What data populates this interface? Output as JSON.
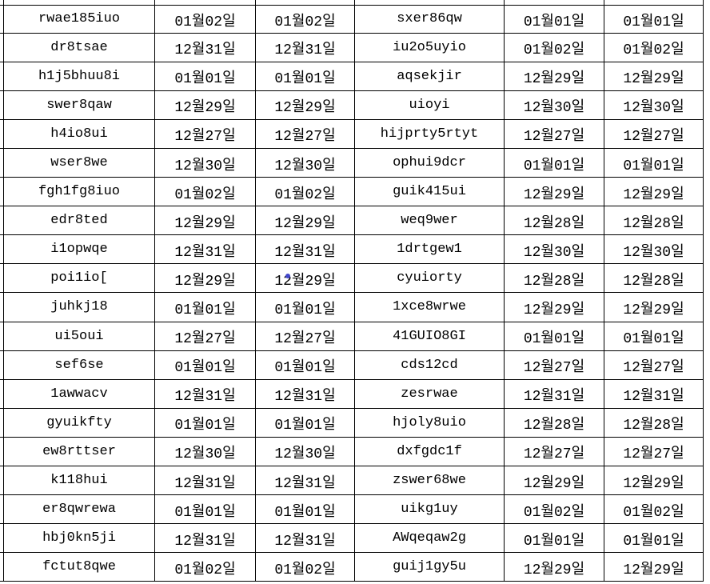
{
  "grid": {
    "description": "spreadsheet cell grid, cropped on all sides, no headers visible",
    "columns": [
      "name_a",
      "date_a1",
      "date_a2",
      "name_b",
      "date_b1",
      "date_b2"
    ],
    "rows": [
      [
        "rwae185iuo",
        "01월02일",
        "01월02일",
        "sxer86qw",
        "01월01일",
        "01월01일"
      ],
      [
        "dr8tsae",
        "12월31일",
        "12월31일",
        "iu2o5uyio",
        "01월02일",
        "01월02일"
      ],
      [
        "h1j5bhuu8i",
        "01월01일",
        "01월01일",
        "aqsekjir",
        "12월29일",
        "12월29일"
      ],
      [
        "swer8qaw",
        "12월29일",
        "12월29일",
        "uioyi",
        "12월30일",
        "12월30일"
      ],
      [
        "h4io8ui",
        "12월27일",
        "12월27일",
        "hijprty5rtyt",
        "12월27일",
        "12월27일"
      ],
      [
        "wser8we",
        "12월30일",
        "12월30일",
        "ophui9dcr",
        "01월01일",
        "01월01일"
      ],
      [
        "fgh1fg8iuo",
        "01월02일",
        "01월02일",
        "guik415ui",
        "12월29일",
        "12월29일"
      ],
      [
        "edr8ted",
        "12월29일",
        "12월29일",
        "weq9wer",
        "12월28일",
        "12월28일"
      ],
      [
        "i1opwqe",
        "12월31일",
        "12월31일",
        "1drtgew1",
        "12월30일",
        "12월30일"
      ],
      [
        "poi1io[",
        "12월29일",
        "12월29일",
        "cyuiorty",
        "12월28일",
        "12월28일"
      ],
      [
        "juhkj18",
        "01월01일",
        "01월01일",
        "1xce8wrwe",
        "12월29일",
        "12월29일"
      ],
      [
        "ui5oui",
        "12월27일",
        "12월27일",
        "41GUIO8GI",
        "01월01일",
        "01월01일"
      ],
      [
        "sef6se",
        "01월01일",
        "01월01일",
        "cds12cd",
        "12월27일",
        "12월27일"
      ],
      [
        "1awwacv",
        "12월31일",
        "12월31일",
        "zesrwae",
        "12월31일",
        "12월31일"
      ],
      [
        "gyuikfty",
        "01월01일",
        "01월01일",
        "hjoly8uio",
        "12월28일",
        "12월28일"
      ],
      [
        "ew8rttser",
        "12월30일",
        "12월30일",
        "dxfgdc1f",
        "12월27일",
        "12월27일"
      ],
      [
        "k118hui",
        "12월31일",
        "12월31일",
        "zswer68we",
        "12월29일",
        "12월29일"
      ],
      [
        "er8qwrewa",
        "01월01일",
        "01월01일",
        "uikg1uy",
        "01월02일",
        "01월02일"
      ],
      [
        "hbj0kn5ji",
        "12월31일",
        "12월31일",
        "AWqeqaw2g",
        "01월01일",
        "01월01일"
      ],
      [
        "fctut8qwe",
        "01월02일",
        "01월02일",
        "guij1gy5u",
        "12월29일",
        "12월29일"
      ]
    ]
  },
  "marker": {
    "name": "blue-dot-marker",
    "color": "#4247cb",
    "row_index": 9,
    "column": "date_a2"
  },
  "colors": {
    "background": "#ffffff",
    "grid_line": "#000000",
    "text": "#000000"
  }
}
